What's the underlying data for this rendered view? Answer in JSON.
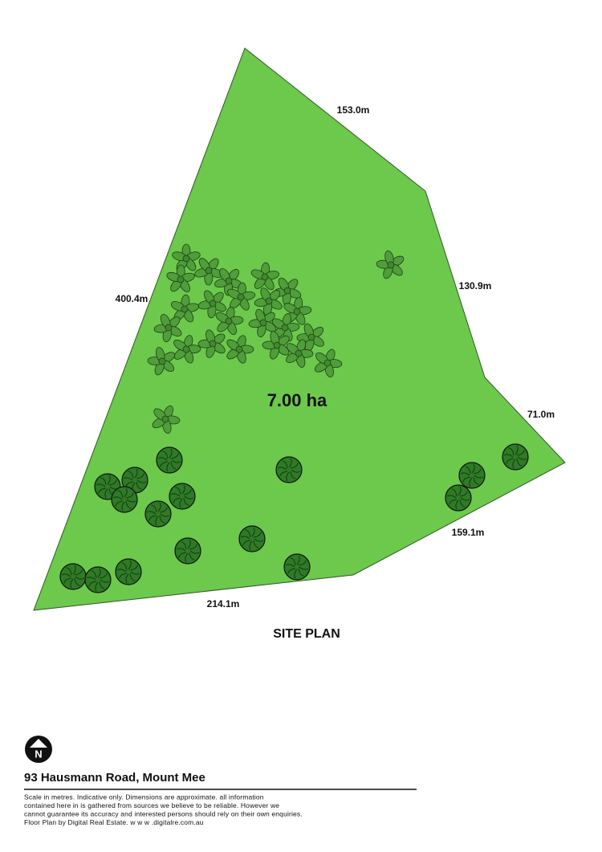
{
  "site_plan": {
    "dimensions": [
      "153.0m",
      "130.9m",
      "71.0m",
      "159.1m",
      "214.1m",
      "400.4m"
    ],
    "area": "7.00 ha",
    "title": "SITE PLAN"
  },
  "north": "N",
  "footer": {
    "address": "93 Hausmann Road, Mount Mee",
    "disclaimer": [
      "Scale in metres. Indicative only. Dimensions are approximate. all information",
      "contained here in is gathered from sources we believe to be reliable. However we",
      "cannot guarantee its accuracy and interested persons should rely on their own enquiries.",
      "Floor Plan by Digital Real Estate. w w w .digitalre.com.au"
    ]
  }
}
